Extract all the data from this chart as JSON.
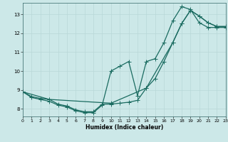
{
  "xlabel": "Humidex (Indice chaleur)",
  "xlim": [
    0,
    23
  ],
  "ylim": [
    7.6,
    13.6
  ],
  "yticks": [
    8,
    9,
    10,
    11,
    12,
    13
  ],
  "xticks": [
    0,
    1,
    2,
    3,
    4,
    5,
    6,
    7,
    8,
    9,
    10,
    11,
    12,
    13,
    14,
    15,
    16,
    17,
    18,
    19,
    20,
    21,
    22,
    23
  ],
  "background_color": "#cce8e8",
  "grid_color": "#b8d8d8",
  "line_color": "#1a6b60",
  "line1_x": [
    0,
    1,
    2,
    3,
    4,
    5,
    6,
    7,
    8,
    9,
    10,
    11,
    12,
    13,
    14,
    15,
    16,
    17,
    18,
    19,
    20,
    21,
    22,
    23
  ],
  "line1_y": [
    8.9,
    8.65,
    8.55,
    8.5,
    8.25,
    8.15,
    7.95,
    7.85,
    7.85,
    8.25,
    8.25,
    8.3,
    8.35,
    8.45,
    9.1,
    9.6,
    10.5,
    11.5,
    12.5,
    13.2,
    12.9,
    12.55,
    12.35,
    12.35
  ],
  "line2_x": [
    0,
    1,
    2,
    3,
    4,
    5,
    6,
    7,
    8,
    9,
    10,
    11,
    12,
    13,
    14,
    15,
    16,
    17,
    18,
    19,
    20,
    21,
    22,
    23
  ],
  "line2_y": [
    8.9,
    8.6,
    8.5,
    8.4,
    8.2,
    8.1,
    7.9,
    7.8,
    7.8,
    8.2,
    10.0,
    10.25,
    10.5,
    8.7,
    10.5,
    10.65,
    11.5,
    12.65,
    13.4,
    13.25,
    12.55,
    12.3,
    12.3,
    12.3
  ],
  "line3_x": [
    0,
    3,
    10,
    14,
    17,
    18,
    19,
    20,
    21,
    22,
    23
  ],
  "line3_y": [
    8.9,
    8.5,
    8.3,
    9.1,
    11.5,
    12.5,
    13.2,
    12.9,
    12.55,
    12.35,
    12.35
  ]
}
